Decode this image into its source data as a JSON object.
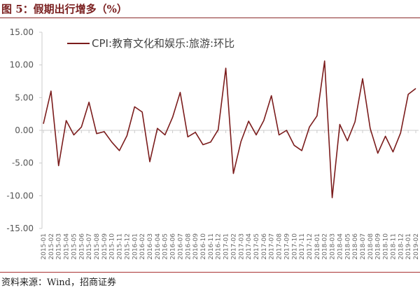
{
  "title": "图 5：假期出行增多（%）",
  "source": "资料来源：Wind，招商证券",
  "chart_data": {
    "type": "line",
    "title": "",
    "xlabel": "",
    "ylabel": "",
    "ylim": [
      -15,
      15
    ],
    "yticks": [
      "15.00",
      "10.00",
      "5.00",
      "0.00",
      "-5.00",
      "-10.00",
      "-15.00"
    ],
    "ytick_values": [
      15,
      10,
      5,
      0,
      -5,
      -10,
      -15
    ],
    "legend_position": "top",
    "grid": false,
    "color": "#7b1c1c",
    "x": [
      "2015-01",
      "2015-02",
      "2015-03",
      "2015-04",
      "2015-05",
      "2015-06",
      "2015-07",
      "2015-08",
      "2015-09",
      "2015-10",
      "2015-11",
      "2015-12",
      "2016-01",
      "2016-02",
      "2016-03",
      "2016-04",
      "2016-05",
      "2016-06",
      "2016-07",
      "2016-08",
      "2016-09",
      "2016-10",
      "2016-11",
      "2016-12",
      "2017-01",
      "2017-02",
      "2017-03",
      "2017-04",
      "2017-05",
      "2017-06",
      "2017-07",
      "2017-08",
      "2017-09",
      "2017-10",
      "2017-11",
      "2017-12",
      "2018-01",
      "2018-02",
      "2018-03",
      "2018-04",
      "2018-05",
      "2018-06",
      "2018-07",
      "2018-08",
      "2018-09",
      "2018-10",
      "2018-11",
      "2018-12",
      "2019-01",
      "2019-02"
    ],
    "series": [
      {
        "name": "CPI:教育文化和娱乐:旅游:环比",
        "values": [
          1.0,
          6.0,
          -5.4,
          1.5,
          -0.7,
          0.5,
          4.3,
          -0.5,
          -0.2,
          -1.8,
          -3.1,
          -0.8,
          3.6,
          2.8,
          -4.8,
          0.3,
          -0.7,
          2.0,
          5.8,
          -1.0,
          -0.3,
          -2.2,
          -1.8,
          0.1,
          9.5,
          -6.6,
          -1.7,
          1.4,
          -0.7,
          1.5,
          5.3,
          -0.7,
          0.0,
          -2.3,
          -3.1,
          0.5,
          2.2,
          10.6,
          -10.3,
          0.9,
          -1.6,
          1.3,
          7.9,
          0.3,
          -3.5,
          -0.9,
          -3.3,
          -0.4,
          5.5,
          6.4
        ]
      }
    ]
  }
}
